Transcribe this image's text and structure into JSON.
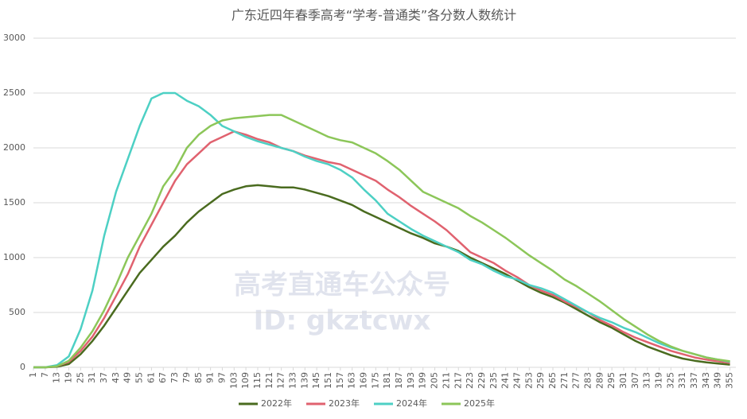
{
  "chart_data": {
    "type": "line",
    "title": "广东近四年春季高考“学考-普通类”各分数人数统计",
    "watermark": [
      "高考直通车公众号",
      "ID: gkztcwx"
    ],
    "x": [
      1,
      7,
      13,
      19,
      25,
      31,
      37,
      43,
      49,
      55,
      61,
      67,
      73,
      79,
      85,
      91,
      97,
      103,
      109,
      115,
      121,
      127,
      133,
      139,
      145,
      151,
      157,
      163,
      169,
      175,
      181,
      187,
      193,
      199,
      205,
      211,
      217,
      223,
      229,
      235,
      241,
      247,
      253,
      259,
      265,
      271,
      277,
      283,
      289,
      295,
      301,
      307,
      313,
      319,
      325,
      331,
      337,
      343,
      349,
      355
    ],
    "xlim": [
      1,
      358
    ],
    "ylim": [
      0,
      3000
    ],
    "yticks": [
      0,
      500,
      1000,
      1500,
      2000,
      2500,
      3000
    ],
    "grid": true,
    "legend": "bottom",
    "series": [
      {
        "name": "2022年",
        "color": "#4a6b1f",
        "values": [
          0,
          0,
          5,
          30,
          120,
          240,
          380,
          540,
          700,
          860,
          980,
          1100,
          1200,
          1320,
          1420,
          1500,
          1580,
          1620,
          1650,
          1660,
          1650,
          1640,
          1640,
          1620,
          1590,
          1560,
          1520,
          1480,
          1420,
          1370,
          1320,
          1270,
          1220,
          1180,
          1130,
          1100,
          1060,
          1000,
          950,
          900,
          850,
          790,
          730,
          680,
          640,
          590,
          530,
          470,
          410,
          360,
          300,
          240,
          190,
          150,
          110,
          80,
          60,
          45,
          35,
          25
        ]
      },
      {
        "name": "2023年",
        "color": "#e0626f",
        "values": [
          0,
          0,
          10,
          50,
          150,
          280,
          450,
          650,
          850,
          1100,
          1300,
          1500,
          1700,
          1850,
          1950,
          2050,
          2100,
          2150,
          2120,
          2080,
          2050,
          2000,
          1970,
          1930,
          1900,
          1870,
          1850,
          1800,
          1750,
          1700,
          1620,
          1550,
          1470,
          1400,
          1330,
          1250,
          1150,
          1050,
          1000,
          950,
          880,
          820,
          750,
          700,
          660,
          600,
          550,
          500,
          430,
          380,
          320,
          270,
          230,
          190,
          150,
          120,
          90,
          70,
          55,
          40
        ]
      },
      {
        "name": "2024年",
        "color": "#4dd0c4",
        "values": [
          0,
          0,
          20,
          100,
          350,
          700,
          1200,
          1600,
          1900,
          2200,
          2450,
          2500,
          2500,
          2430,
          2380,
          2300,
          2200,
          2150,
          2100,
          2060,
          2030,
          2000,
          1970,
          1920,
          1880,
          1850,
          1800,
          1730,
          1620,
          1520,
          1400,
          1330,
          1260,
          1200,
          1150,
          1100,
          1050,
          980,
          940,
          880,
          830,
          800,
          750,
          720,
          680,
          620,
          560,
          500,
          450,
          410,
          360,
          320,
          270,
          220,
          180,
          150,
          120,
          90,
          70,
          50
        ]
      },
      {
        "name": "2025年",
        "color": "#8cc659",
        "values": [
          0,
          0,
          10,
          60,
          180,
          330,
          520,
          750,
          1000,
          1200,
          1400,
          1650,
          1800,
          2000,
          2120,
          2200,
          2250,
          2270,
          2280,
          2290,
          2300,
          2300,
          2250,
          2200,
          2150,
          2100,
          2070,
          2050,
          2000,
          1950,
          1880,
          1800,
          1700,
          1600,
          1550,
          1500,
          1450,
          1380,
          1320,
          1250,
          1180,
          1100,
          1020,
          950,
          880,
          800,
          740,
          670,
          600,
          520,
          440,
          370,
          300,
          240,
          190,
          150,
          120,
          90,
          70,
          55
        ]
      }
    ]
  }
}
